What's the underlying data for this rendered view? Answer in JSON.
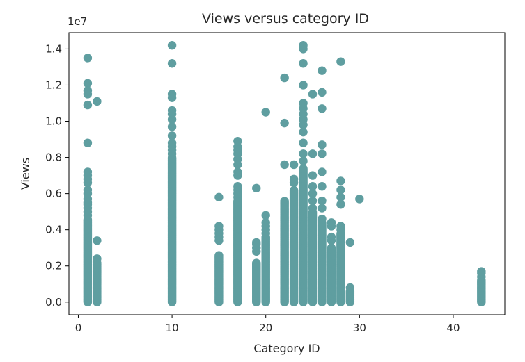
{
  "chart_data": {
    "type": "scatter",
    "title": "Views versus category ID",
    "xlabel": "Category ID",
    "ylabel": "Views",
    "y_offset_label": "1e7",
    "xlim": [
      -1,
      45.5
    ],
    "ylim": [
      -0.07,
      1.49
    ],
    "xticks": [
      0,
      10,
      20,
      30,
      40
    ],
    "xtick_labels": [
      "0",
      "10",
      "20",
      "30",
      "40"
    ],
    "yticks": [
      0.0,
      0.2,
      0.4,
      0.6,
      0.8,
      1.0,
      1.2,
      1.4
    ],
    "ytick_labels": [
      "0.0",
      "0.2",
      "0.4",
      "0.6",
      "0.8",
      "1.0",
      "1.2",
      "1.4"
    ],
    "grid": false,
    "marker_color": "#5f9ea0",
    "series": [
      {
        "columns": [
          {
            "x": 1,
            "dense_max": 0.46,
            "outliers": [
              0.48,
              0.5,
              0.52,
              0.54,
              0.55,
              0.57,
              0.6,
              0.62,
              0.66,
              0.68,
              0.7,
              0.72,
              0.88,
              1.09,
              1.15,
              1.17,
              1.21,
              1.35
            ]
          },
          {
            "x": 2,
            "dense_max": 0.22,
            "outliers": [
              0.24,
              0.34,
              1.11
            ]
          },
          {
            "x": 10,
            "dense_max": 0.8,
            "outliers": [
              0.82,
              0.84,
              0.86,
              0.88,
              0.92,
              0.97,
              1.01,
              1.04,
              1.06,
              1.13,
              1.15,
              1.32,
              1.42
            ]
          },
          {
            "x": 15,
            "dense_max": 0.26,
            "outliers": [
              0.34,
              0.36,
              0.38,
              0.4,
              0.42,
              0.58
            ]
          },
          {
            "x": 17,
            "dense_max": 0.56,
            "outliers": [
              0.58,
              0.6,
              0.62,
              0.64,
              0.7,
              0.72,
              0.76,
              0.79,
              0.82,
              0.84,
              0.86,
              0.89
            ]
          },
          {
            "x": 19,
            "dense_max": 0.22,
            "outliers": [
              0.28,
              0.3,
              0.32,
              0.33,
              0.63
            ]
          },
          {
            "x": 20,
            "dense_max": 0.36,
            "outliers": [
              0.38,
              0.4,
              0.42,
              0.44,
              0.48,
              1.05
            ]
          },
          {
            "x": 22,
            "dense_max": 0.56,
            "outliers": [
              0.76,
              0.99,
              1.24
            ]
          },
          {
            "x": 23,
            "dense_max": 0.62,
            "outliers": [
              0.66,
              0.68,
              0.76
            ]
          },
          {
            "x": 24,
            "dense_max": 0.74,
            "outliers": [
              0.78,
              0.82,
              0.88,
              0.94,
              0.98,
              1.01,
              1.04,
              1.07,
              1.1,
              1.2,
              1.32,
              1.4,
              1.42
            ]
          },
          {
            "x": 25,
            "dense_max": 0.5,
            "outliers": [
              0.52,
              0.56,
              0.6,
              0.64,
              0.7,
              0.82,
              1.15
            ]
          },
          {
            "x": 26,
            "dense_max": 0.44,
            "outliers": [
              0.46,
              0.52,
              0.56,
              0.64,
              0.72,
              0.82,
              0.87,
              1.07,
              1.16,
              1.28
            ]
          },
          {
            "x": 27,
            "dense_max": 0.3,
            "outliers": [
              0.34,
              0.36,
              0.42,
              0.44
            ]
          },
          {
            "x": 28,
            "dense_max": 0.38,
            "outliers": [
              0.4,
              0.42,
              0.54,
              0.58,
              0.62,
              0.67,
              1.33
            ]
          },
          {
            "x": 29,
            "dense_max": 0.06,
            "outliers": [
              0.08,
              0.33
            ]
          },
          {
            "x": 30,
            "dense_max": null,
            "outliers": [
              0.57
            ]
          },
          {
            "x": 43,
            "dense_max": 0.12,
            "outliers": [
              0.14,
              0.16,
              0.17
            ]
          }
        ]
      }
    ]
  }
}
